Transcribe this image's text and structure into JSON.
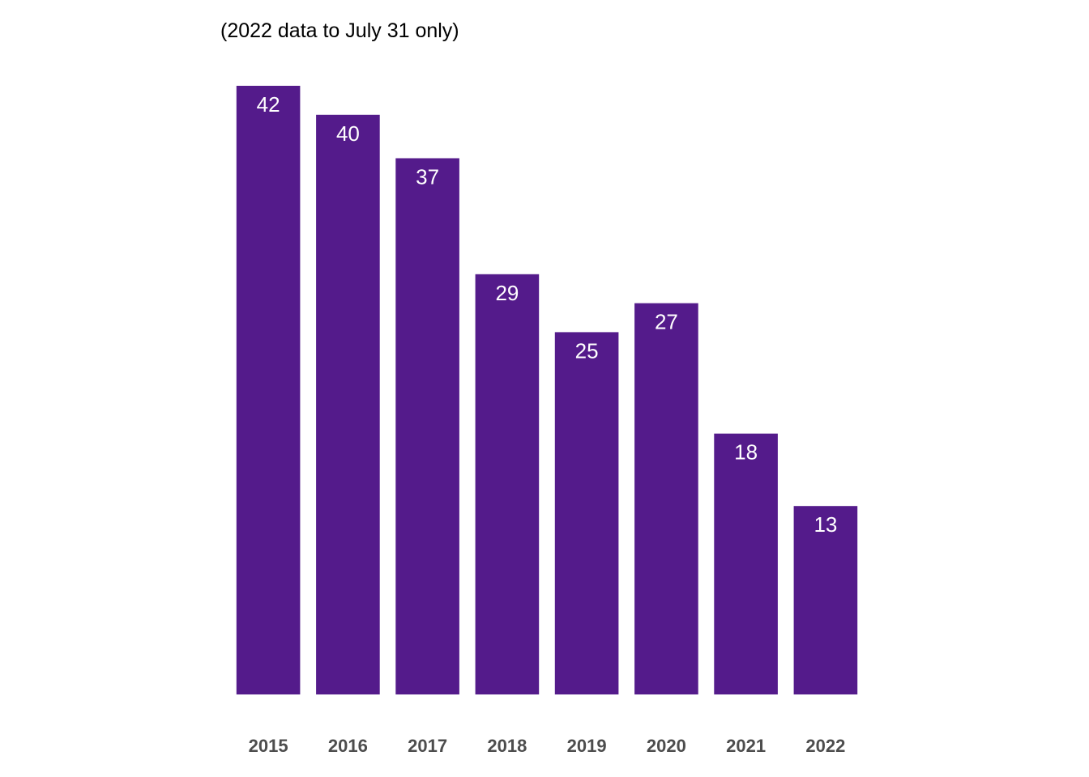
{
  "chart_data": {
    "type": "bar",
    "title": "",
    "subtitle": "(2022 data to July 31 only)",
    "xlabel": "",
    "ylabel": "",
    "categories": [
      "2015",
      "2016",
      "2017",
      "2018",
      "2019",
      "2020",
      "2021",
      "2022"
    ],
    "values": [
      42,
      40,
      37,
      29,
      25,
      27,
      18,
      13
    ],
    "ylim": [
      0,
      42
    ],
    "grid": false,
    "legend": "none",
    "data_labels": "inside-top",
    "colors": {
      "bar": "#541b8b",
      "data_label": "#ffffff",
      "tick_label": "#4d4d4d",
      "subtitle": "#000000"
    }
  }
}
